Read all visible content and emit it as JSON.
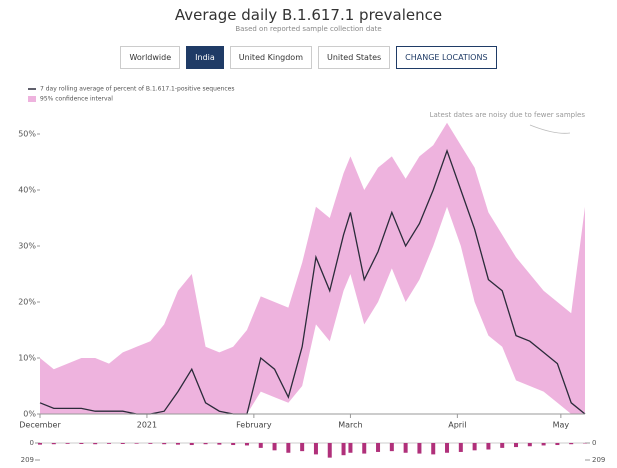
{
  "header": {
    "title": "Average daily B.1.617.1 prevalence",
    "subtitle": "Based on reported sample collection date"
  },
  "buttons": [
    "Worldwide",
    "India",
    "United Kingdom",
    "United States",
    "CHANGE LOCATIONS"
  ],
  "selected_button": 1,
  "chart_data": {
    "type": "line",
    "annotation": "Latest dates are noisy due to fewer samples",
    "x": [
      0,
      4,
      8,
      12,
      16,
      20,
      24,
      28,
      32,
      36,
      40,
      44,
      48,
      52,
      56,
      60,
      64,
      68,
      72,
      76,
      80,
      84,
      88,
      90,
      94,
      98,
      102,
      106,
      110,
      114,
      118,
      122,
      126,
      130,
      134,
      138,
      142,
      146,
      150,
      154,
      158
    ],
    "xlim": [
      0,
      158
    ],
    "xticks": [
      {
        "value": 0,
        "label": "December"
      },
      {
        "value": 31,
        "label": "2021"
      },
      {
        "value": 62,
        "label": "February"
      },
      {
        "value": 90,
        "label": "March"
      },
      {
        "value": 121,
        "label": "April"
      },
      {
        "value": 151,
        "label": "May"
      }
    ],
    "ylim": [
      0,
      52.5
    ],
    "yticks": [
      {
        "value": 0,
        "label": "0%"
      },
      {
        "value": 10,
        "label": "10%"
      },
      {
        "value": 20,
        "label": "20%"
      },
      {
        "value": 30,
        "label": "30%"
      },
      {
        "value": 40,
        "label": "40%"
      },
      {
        "value": 50,
        "label": "50%"
      }
    ],
    "series": [
      {
        "name": "7 day rolling average of percent of B.1.617.1-positive sequences",
        "color": "#2b2b3a",
        "values": [
          2,
          1,
          1,
          1,
          0.5,
          0.5,
          0.5,
          0,
          0,
          0.5,
          4,
          8,
          2,
          0.5,
          0,
          0,
          10,
          8,
          3,
          12,
          28,
          22,
          32,
          36,
          24,
          29,
          36,
          30,
          34,
          40,
          47,
          40,
          33,
          24,
          22,
          14,
          13,
          11,
          9,
          2,
          0
        ]
      },
      {
        "name": "95% confidence interval",
        "color": "#eeb3de",
        "lower": [
          0,
          0,
          0,
          0,
          0,
          0,
          0,
          0,
          0,
          0,
          0,
          0,
          0,
          0,
          0,
          0,
          4,
          3,
          2,
          5,
          16,
          13,
          22,
          25,
          16,
          20,
          26,
          20,
          24,
          30,
          37,
          30,
          20,
          14,
          12,
          6,
          5,
          4,
          2,
          0,
          0
        ],
        "upper": [
          10,
          8,
          9,
          10,
          10,
          9,
          11,
          12,
          13,
          16,
          22,
          25,
          12,
          11,
          12,
          15,
          21,
          20,
          19,
          27,
          37,
          35,
          43,
          46,
          40,
          44,
          46,
          42,
          46,
          48,
          52,
          48,
          44,
          36,
          32,
          28,
          25,
          22,
          20,
          18,
          37
        ]
      }
    ],
    "sample_counts": {
      "color": "#b0307a",
      "ylim": [
        0,
        209
      ],
      "yticks": [
        0,
        209
      ],
      "values": [
        20,
        15,
        10,
        12,
        15,
        10,
        12,
        8,
        10,
        15,
        20,
        25,
        15,
        20,
        25,
        30,
        60,
        90,
        120,
        100,
        140,
        180,
        150,
        120,
        130,
        110,
        100,
        120,
        130,
        140,
        120,
        110,
        90,
        80,
        60,
        50,
        40,
        30,
        25,
        15,
        5
      ]
    }
  }
}
